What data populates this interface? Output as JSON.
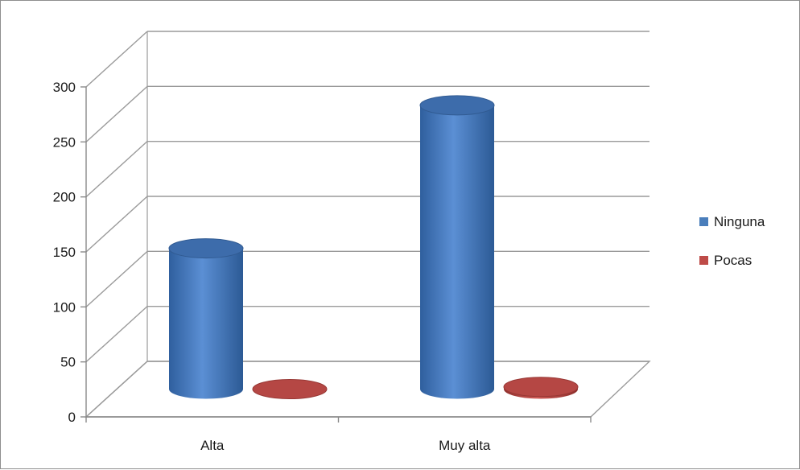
{
  "chart_data": {
    "type": "bar",
    "style": "3d-cylinder",
    "categories": [
      "Alta",
      "Muy alta"
    ],
    "series": [
      {
        "name": "Ninguna",
        "color": "#4a7ebb",
        "values": [
          128,
          258
        ]
      },
      {
        "name": "Pocas",
        "color": "#be4b48",
        "values": [
          0,
          2
        ]
      }
    ],
    "ylim": [
      0,
      300
    ],
    "yticks": [
      0,
      50,
      100,
      150,
      200,
      250,
      300
    ],
    "grid": true,
    "legend": "right"
  }
}
